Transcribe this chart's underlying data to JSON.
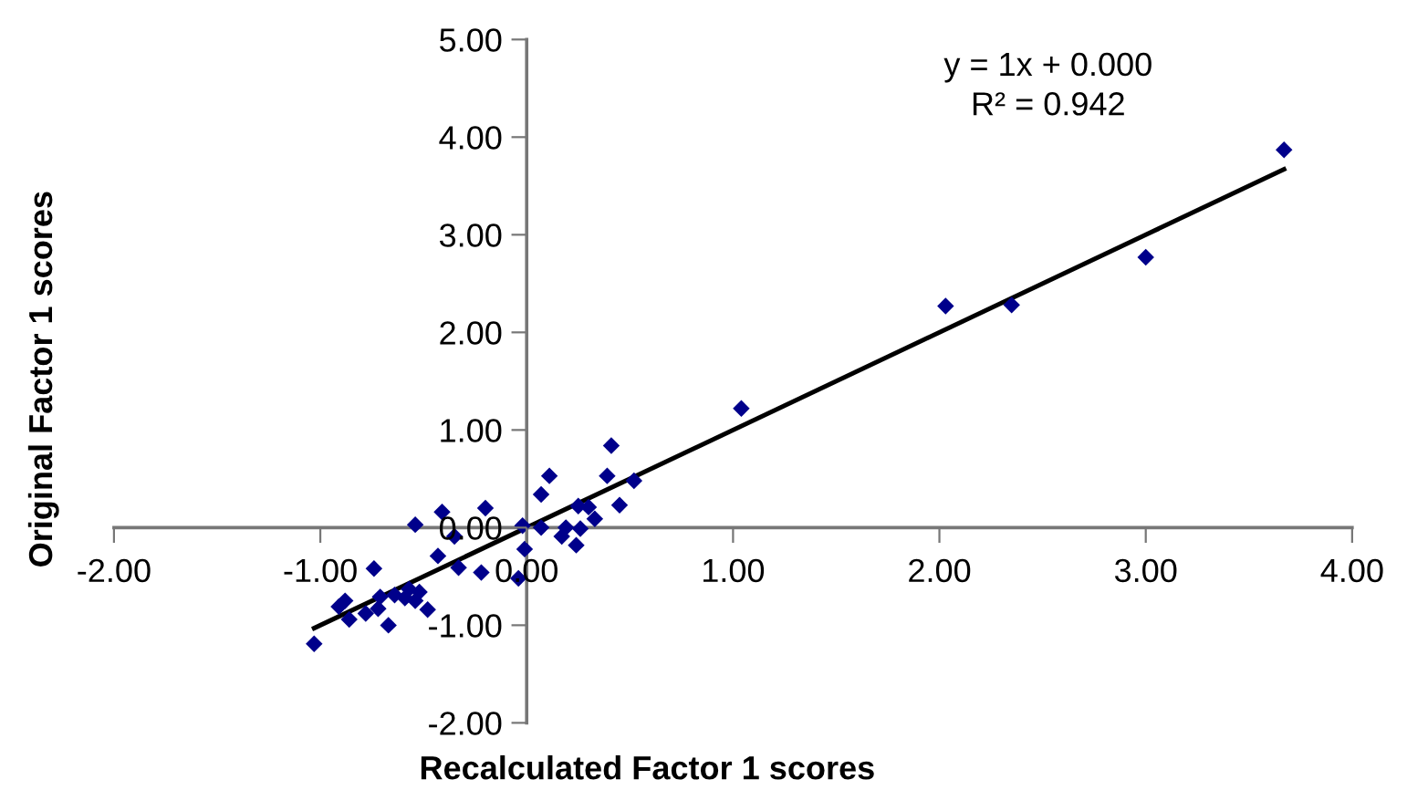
{
  "chart_data": {
    "type": "scatter",
    "xlabel": "Recalculated Factor 1 scores",
    "ylabel": "Original Factor 1 scores",
    "annotations": [
      "y = 1x + 0.000",
      "R² = 0.942"
    ],
    "xlim": [
      -2,
      4
    ],
    "ylim": [
      -2,
      5
    ],
    "xticks": [
      {
        "value": -2,
        "label": "-2.00"
      },
      {
        "value": -1,
        "label": "-1.00"
      },
      {
        "value": 0,
        "label": "0.00"
      },
      {
        "value": 1,
        "label": "1.00"
      },
      {
        "value": 2,
        "label": "2.00"
      },
      {
        "value": 3,
        "label": "3.00"
      },
      {
        "value": 4,
        "label": "4.00"
      }
    ],
    "yticks": [
      {
        "value": -2,
        "label": "-2.00"
      },
      {
        "value": -1,
        "label": "-1.00"
      },
      {
        "value": 0,
        "label": "0.00"
      },
      {
        "value": 1,
        "label": "1.00"
      },
      {
        "value": 2,
        "label": "2.00"
      },
      {
        "value": 3,
        "label": "3.00"
      },
      {
        "value": 4,
        "label": "4.00"
      },
      {
        "value": 5,
        "label": "5.00"
      }
    ],
    "grid": false,
    "legend": false,
    "series": [
      {
        "color": "#00008b",
        "marker": "diamond",
        "x": [
          3.67,
          3.0,
          2.35,
          2.03,
          1.04,
          0.41,
          0.39,
          0.52,
          0.45,
          0.11,
          0.07,
          0.07,
          0.25,
          0.3,
          0.33,
          0.26,
          0.24,
          0.17,
          0.19,
          -0.02,
          -0.01,
          -0.04,
          -0.2,
          -0.35,
          -0.41,
          -0.54,
          -0.43,
          -0.33,
          -0.22,
          -0.74,
          -0.48,
          -0.67,
          -1.03,
          -0.88,
          -0.86,
          -0.91,
          -0.78,
          -0.72,
          -0.71,
          -0.64,
          -0.59,
          -0.57,
          -0.52,
          -0.54
        ],
        "values": [
          3.87,
          2.77,
          2.28,
          2.27,
          1.22,
          0.84,
          0.53,
          0.48,
          0.23,
          0.53,
          0.34,
          0.0,
          0.22,
          0.21,
          0.09,
          -0.01,
          -0.18,
          -0.09,
          0.0,
          0.02,
          -0.22,
          -0.52,
          0.2,
          -0.09,
          0.16,
          0.03,
          -0.29,
          -0.41,
          -0.46,
          -0.42,
          -0.84,
          -1.0,
          -1.19,
          -0.75,
          -0.94,
          -0.81,
          -0.88,
          -0.83,
          -0.71,
          -0.69,
          -0.72,
          -0.63,
          -0.66,
          -0.75
        ]
      },
      {
        "type": "line",
        "color": "#000000",
        "line_style": "solid",
        "marker": "none",
        "x": [
          -1.03,
          3.67
        ],
        "values": [
          -1.03,
          3.67
        ]
      }
    ]
  }
}
